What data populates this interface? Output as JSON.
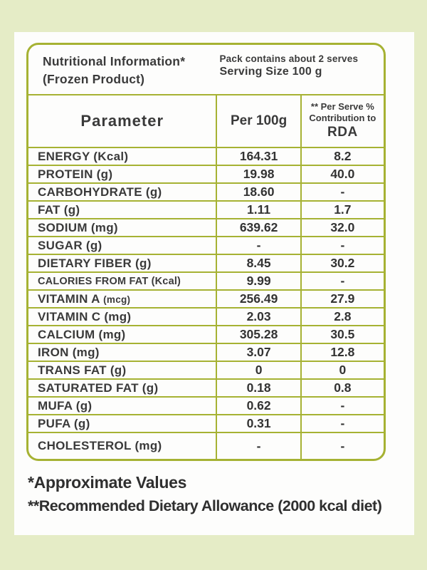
{
  "colors": {
    "page_background": "#e5ecc6",
    "card_background": "#fdfdfc",
    "table_border": "#a6b233",
    "text": "#3a3a3a"
  },
  "table": {
    "header": {
      "title_line1": "Nutritional Information*",
      "title_line2": "(Frozen Product)",
      "pack_line1": "Pack contains about 2 serves",
      "pack_line2": "Serving Size 100 g"
    },
    "columns": {
      "parameter": "Parameter",
      "per100g": "Per 100g",
      "rda_line1": "** Per Serve %",
      "rda_line2": "Contribution to",
      "rda_line3": "RDA"
    },
    "rows": [
      {
        "label": "ENERGY (Kcal)",
        "per100g": "164.31",
        "rda": "8.2"
      },
      {
        "label": "PROTEIN (g)",
        "per100g": "19.98",
        "rda": "40.0"
      },
      {
        "label": "CARBOHYDRATE (g)",
        "per100g": "18.60",
        "rda": "-"
      },
      {
        "label": "FAT (g)",
        "per100g": "1.11",
        "rda": "1.7"
      },
      {
        "label": "SODIUM (mg)",
        "per100g": "639.62",
        "rda": "32.0"
      },
      {
        "label": "SUGAR (g)",
        "per100g": "-",
        "rda": "-"
      },
      {
        "label": "DIETARY FIBER (g)",
        "per100g": "8.45",
        "rda": "30.2"
      },
      {
        "label": "CALORIES FROM FAT (Kcal)",
        "per100g": "9.99",
        "rda": "-"
      },
      {
        "label": "VITAMIN A (mcg)",
        "per100g": "256.49",
        "rda": "27.9"
      },
      {
        "label": "VITAMIN C (mg)",
        "per100g": "2.03",
        "rda": "2.8"
      },
      {
        "label": "CALCIUM (mg)",
        "per100g": "305.28",
        "rda": "30.5"
      },
      {
        "label": "IRON (mg)",
        "per100g": "3.07",
        "rda": "12.8"
      },
      {
        "label": "TRANS FAT (g)",
        "per100g": "0",
        "rda": "0"
      },
      {
        "label": "SATURATED FAT (g)",
        "per100g": "0.18",
        "rda": "0.8"
      },
      {
        "label": "MUFA (g)",
        "per100g": "0.62",
        "rda": "-"
      },
      {
        "label": "PUFA (g)",
        "per100g": "0.31",
        "rda": "-"
      },
      {
        "label": "CHOLESTEROL (mg)",
        "per100g": "-",
        "rda": "-"
      }
    ]
  },
  "footnotes": {
    "line1": "*Approximate Values",
    "line2": "**Recommended Dietary Allowance (2000 kcal diet)"
  }
}
